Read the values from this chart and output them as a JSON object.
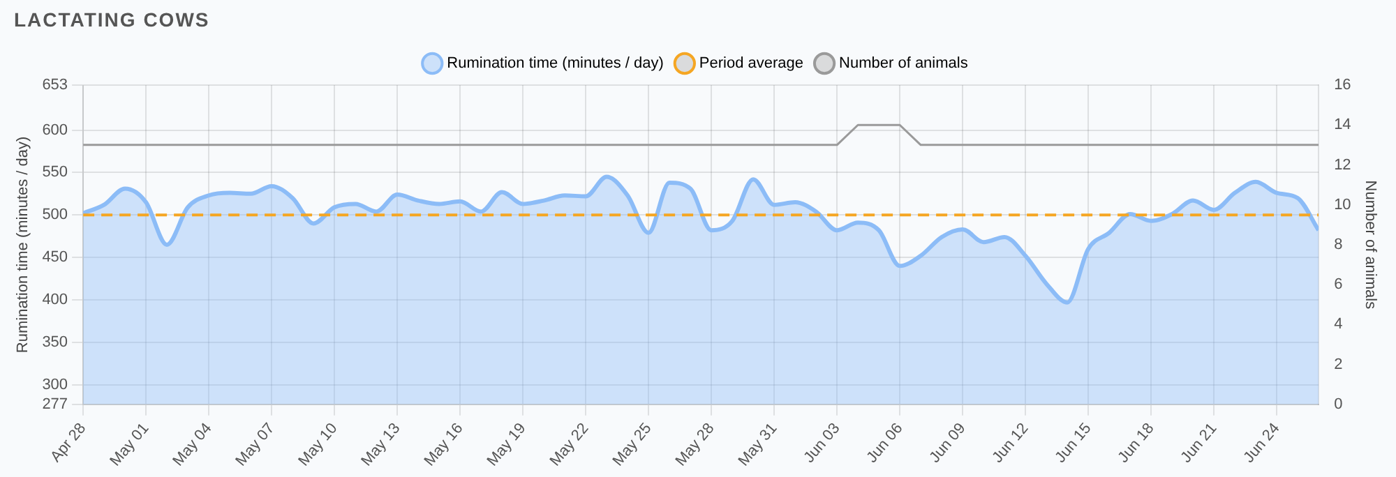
{
  "chart_data": {
    "type": "area",
    "title": "LACTATING COWS",
    "ylabel": "Rumination time (minutes / day)",
    "y2label": "Number of animals",
    "x": [
      "--04-28",
      "--04-29",
      "--04-30",
      "--05-01",
      "--05-02",
      "--05-03",
      "--05-04",
      "--05-05",
      "--05-06",
      "--05-07",
      "--05-08",
      "--05-09",
      "--05-10",
      "--05-11",
      "--05-12",
      "--05-13",
      "--05-14",
      "--05-15",
      "--05-16",
      "--05-17",
      "--05-18",
      "--05-19",
      "--05-20",
      "--05-21",
      "--05-22",
      "--05-23",
      "--05-24",
      "--05-25",
      "--05-26",
      "--05-27",
      "--05-28",
      "--05-29",
      "--05-30",
      "--05-31",
      "--06-01",
      "--06-02",
      "--06-03",
      "--06-04",
      "--06-05",
      "--06-06",
      "--06-07",
      "--06-08",
      "--06-09",
      "--06-10",
      "--06-11",
      "--06-12",
      "--06-13",
      "--06-14",
      "--06-15",
      "--06-16",
      "--06-17",
      "--06-18",
      "--06-19",
      "--06-20",
      "--06-21",
      "--06-22",
      "--06-23",
      "--06-24",
      "--06-25",
      "--06-26"
    ],
    "series": [
      {
        "name": "Rumination time (minutes / day)",
        "type": "area",
        "color": "#8cbcf7",
        "values": [
          502,
          512,
          531,
          515,
          465,
          509,
          523,
          526,
          525,
          534,
          520,
          490,
          509,
          513,
          504,
          524,
          517,
          513,
          516,
          504,
          527,
          513,
          517,
          523,
          522,
          545,
          523,
          479,
          538,
          531,
          482,
          493,
          542,
          512,
          515,
          504,
          482,
          491,
          482,
          440,
          452,
          474,
          483,
          468,
          474,
          452,
          419,
          397,
          460,
          479,
          501,
          493,
          501,
          517,
          506,
          526,
          539,
          526,
          520,
          482
        ]
      },
      {
        "name": "Period average",
        "type": "line",
        "color": "#f5a623",
        "line_style": "dashed",
        "values": [
          500,
          500,
          500,
          500,
          500,
          500,
          500,
          500,
          500,
          500,
          500,
          500,
          500,
          500,
          500,
          500,
          500,
          500,
          500,
          500,
          500,
          500,
          500,
          500,
          500,
          500,
          500,
          500,
          500,
          500,
          500,
          500,
          500,
          500,
          500,
          500,
          500,
          500,
          500,
          500,
          500,
          500,
          500,
          500,
          500,
          500,
          500,
          500,
          500,
          500,
          500,
          500,
          500,
          500,
          500,
          500,
          500,
          500,
          500,
          500
        ]
      },
      {
        "name": "Number of animals",
        "type": "line",
        "axis": "y2",
        "color": "#9a9a9a",
        "values": [
          13,
          13,
          13,
          13,
          13,
          13,
          13,
          13,
          13,
          13,
          13,
          13,
          13,
          13,
          13,
          13,
          13,
          13,
          13,
          13,
          13,
          13,
          13,
          13,
          13,
          13,
          13,
          13,
          13,
          13,
          13,
          13,
          13,
          13,
          13,
          13,
          13,
          14,
          14,
          14,
          13,
          13,
          13,
          13,
          13,
          13,
          13,
          13,
          13,
          13,
          13,
          13,
          13,
          13,
          13,
          13,
          13,
          13,
          13,
          13
        ]
      }
    ],
    "xlim": [
      "--04-28",
      "--06-26"
    ],
    "xticks": [
      {
        "value": "--04-28",
        "label": "Apr 28"
      },
      {
        "value": "--05-01",
        "label": "May 01"
      },
      {
        "value": "--05-04",
        "label": "May 04"
      },
      {
        "value": "--05-07",
        "label": "May 07"
      },
      {
        "value": "--05-10",
        "label": "May 10"
      },
      {
        "value": "--05-13",
        "label": "May 13"
      },
      {
        "value": "--05-16",
        "label": "May 16"
      },
      {
        "value": "--05-19",
        "label": "May 19"
      },
      {
        "value": "--05-22",
        "label": "May 22"
      },
      {
        "value": "--05-25",
        "label": "May 25"
      },
      {
        "value": "--05-28",
        "label": "May 28"
      },
      {
        "value": "--05-31",
        "label": "May 31"
      },
      {
        "value": "--06-03",
        "label": "Jun 03"
      },
      {
        "value": "--06-06",
        "label": "Jun 06"
      },
      {
        "value": "--06-09",
        "label": "Jun 09"
      },
      {
        "value": "--06-12",
        "label": "Jun 12"
      },
      {
        "value": "--06-15",
        "label": "Jun 15"
      },
      {
        "value": "--06-18",
        "label": "Jun 18"
      },
      {
        "value": "--06-21",
        "label": "Jun 21"
      },
      {
        "value": "--06-24",
        "label": "Jun 24"
      }
    ],
    "ylim": [
      277,
      653
    ],
    "yticks": [
      277,
      300,
      350,
      400,
      450,
      500,
      550,
      600,
      653
    ],
    "y2lim": [
      0,
      16
    ],
    "y2ticks": [
      0,
      2,
      4,
      6,
      8,
      10,
      12,
      14,
      16
    ],
    "grid": true,
    "legend": "top",
    "marker": "none"
  }
}
